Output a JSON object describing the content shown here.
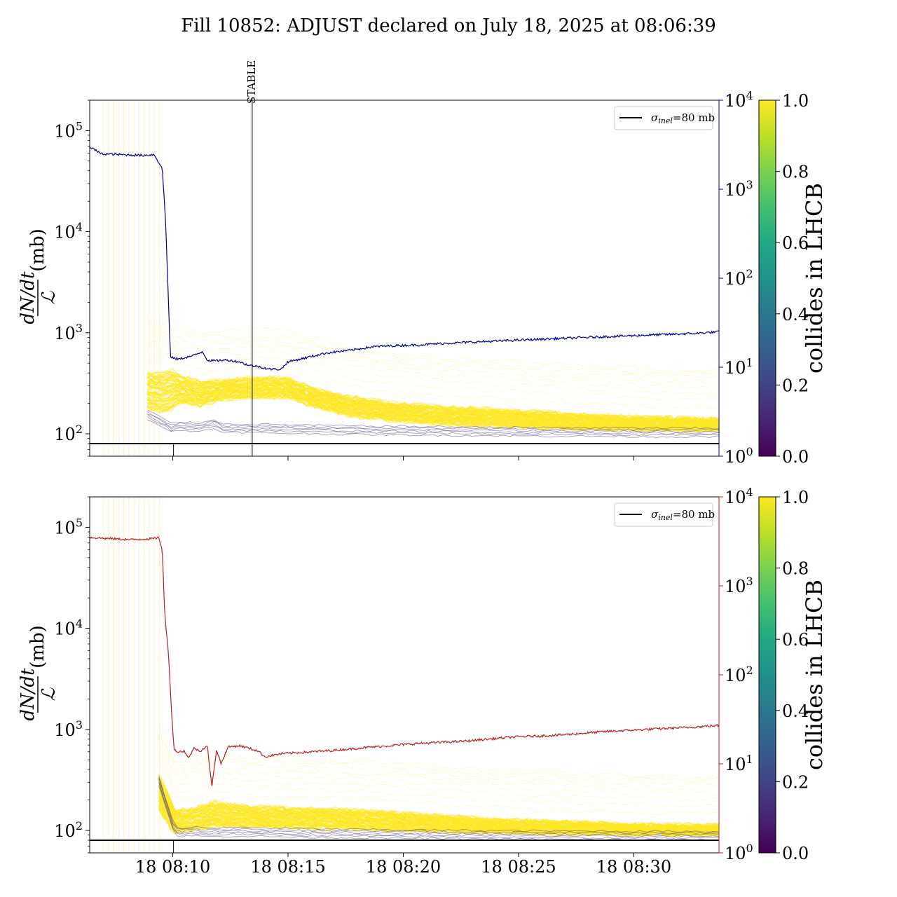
{
  "title": "Fill 10852: ADJUST declared on July 18, 2025 at 08:06:39",
  "colors": {
    "upper_line": "#00008b",
    "lower_line": "#b22222",
    "yellow": "#fde725",
    "purple": "#46327e"
  },
  "chart_data": [
    {
      "type": "line",
      "name": "upper_panel",
      "ylabel_frac_num": "dN/dt",
      "ylabel_frac_den": "ℒ",
      "ylabel_unit": "(mb)",
      "y_scale": "log",
      "ylim": [
        60,
        200000
      ],
      "y_ticks": [
        "10^2",
        "10^3",
        "10^4",
        "10^5"
      ],
      "x_ticks": [],
      "xlim_minutes_from_0810": [
        -3.3,
        24
      ],
      "right_axis": {
        "scale": "log",
        "ylim": [
          1,
          10000
        ],
        "ticks": [
          "10^0",
          "10^1",
          "10^2",
          "10^3",
          "10^4"
        ],
        "color": "#00008b"
      },
      "legend": [
        {
          "label_main": "σ",
          "label_sub": "inel",
          "label_rest": "=80 mb",
          "color": "#000000"
        }
      ],
      "legend_position": "upper-right",
      "hline": 80,
      "vline": {
        "label": "STABLE",
        "x": "18 08:14"
      },
      "right_series": {
        "x": [
          -3.3,
          -2.8,
          -2.0,
          -1.0,
          -0.5,
          -0.15,
          0.0,
          0.2,
          0.4,
          0.6,
          1.2,
          1.6,
          1.8,
          2.2,
          2.4,
          2.7,
          3.2,
          3.6,
          4.0,
          4.5,
          5.0,
          5.3,
          6.2,
          7.0,
          8.0,
          9.0,
          10.0,
          11.0,
          12.0,
          14.0,
          16.0,
          18.0,
          20.0,
          22.0,
          23.0,
          24.0
        ],
        "y": [
          3000,
          2500,
          2450,
          2400,
          2450,
          1700,
          400,
          13,
          12.5,
          12.4,
          13.5,
          15,
          12,
          11.8,
          12,
          12,
          11.5,
          10.5,
          10.2,
          9.5,
          9.5,
          11.5,
          13,
          14.5,
          15.5,
          17,
          17.5,
          17.8,
          18.5,
          19.5,
          20.5,
          21.5,
          22.5,
          23.5,
          24,
          25
        ]
      },
      "colorbar": {
        "label": "collides in LHCB",
        "ticks": [
          "0.0",
          "0.2",
          "0.4",
          "0.6",
          "0.8",
          "1.0"
        ],
        "colormap": "viridis"
      },
      "band_series_upper": {
        "x": [
          -0.8,
          0.0,
          0.2,
          0.6,
          1.5,
          2.5,
          4.0,
          5.3,
          6.2,
          8.0,
          10.0,
          12.0,
          14.0,
          16.0,
          18.0,
          20.0,
          24.0
        ],
        "y": [
          400,
          400,
          430,
          380,
          330,
          340,
          360,
          350,
          290,
          230,
          200,
          185,
          175,
          165,
          155,
          148,
          140
        ]
      },
      "band_series_lower": {
        "x": [
          -0.8,
          0.0,
          0.2,
          0.6,
          1.5,
          2.5,
          4.0,
          5.3,
          6.2,
          8.0,
          10.0,
          12.0,
          14.0,
          16.0,
          18.0,
          20.0,
          24.0
        ],
        "y": [
          180,
          160,
          170,
          200,
          190,
          220,
          230,
          230,
          190,
          150,
          135,
          125,
          120,
          115,
          112,
          110,
          108
        ]
      },
      "purple_series": {
        "x": [
          -0.8,
          0.0,
          0.2,
          0.6,
          1.5,
          2.2,
          2.4,
          3.0,
          5.0,
          8.0,
          12.0,
          16.0,
          20.0,
          24.0
        ],
        "y": [
          150,
          120,
          110,
          115,
          112,
          125,
          108,
          110,
          108,
          105,
          103,
          101,
          100,
          99
        ]
      }
    },
    {
      "type": "line",
      "name": "lower_panel",
      "ylabel_frac_num": "dN/dt",
      "ylabel_frac_den": "ℒ",
      "ylabel_unit": "(mb)",
      "y_scale": "log",
      "ylim": [
        60,
        200000
      ],
      "y_ticks": [
        "10^2",
        "10^3",
        "10^4",
        "10^5"
      ],
      "x_ticks": [
        "18 08:10",
        "18 08:15",
        "18 08:20",
        "18 08:25",
        "18 08:30"
      ],
      "x_tick_values": [
        0,
        5,
        10,
        15,
        20
      ],
      "xlim_minutes_from_0810": [
        -3.3,
        24
      ],
      "right_axis": {
        "scale": "log",
        "ylim": [
          1,
          10000
        ],
        "ticks": [
          "10^0",
          "10^1",
          "10^2",
          "10^3",
          "10^4"
        ],
        "color": "#b22222"
      },
      "legend": [
        {
          "label_main": "σ",
          "label_sub": "inel",
          "label_rest": "=80 mb",
          "color": "#000000"
        }
      ],
      "legend_position": "upper-right",
      "hline": 80,
      "right_series": {
        "x": [
          -3.3,
          -2.5,
          -1.5,
          -0.5,
          -0.3,
          -0.15,
          -0.05,
          0.1,
          0.25,
          0.35,
          0.5,
          0.8,
          1.0,
          1.2,
          1.5,
          1.8,
          2.0,
          2.2,
          2.4,
          2.7,
          3.2,
          3.6,
          4.0,
          4.3,
          5.0,
          7.0,
          9.0,
          11.0,
          13.0,
          15.0,
          17.0,
          19.0,
          21.0,
          23.0,
          24.0
        ],
        "y": [
          3500,
          3400,
          3300,
          3400,
          3500,
          2500,
          500,
          200,
          40,
          15,
          13.5,
          14,
          11.5,
          15,
          14,
          16,
          5.5,
          14.5,
          10,
          15.5,
          16,
          15,
          14,
          12,
          13,
          14,
          15.5,
          17,
          18,
          20,
          21,
          23,
          24.5,
          26,
          27
        ]
      },
      "colorbar": {
        "label": "collides in LHCB",
        "ticks": [
          "0.0",
          "0.2",
          "0.4",
          "0.6",
          "0.8",
          "1.0"
        ],
        "colormap": "viridis"
      },
      "band_series_upper": {
        "x": [
          -0.3,
          0.0,
          0.4,
          0.8,
          1.5,
          2.0,
          3.0,
          4.0,
          6.0,
          8.0,
          10.0,
          12.0,
          14.0,
          16.0,
          18.0,
          20.0,
          24.0
        ],
        "y": [
          350,
          260,
          160,
          160,
          170,
          190,
          180,
          170,
          165,
          160,
          150,
          140,
          130,
          125,
          120,
          115,
          112
        ]
      },
      "band_series_lower": {
        "x": [
          -0.3,
          0.0,
          0.4,
          0.8,
          1.5,
          2.0,
          3.0,
          4.0,
          6.0,
          8.0,
          10.0,
          12.0,
          14.0,
          16.0,
          18.0,
          20.0,
          24.0
        ],
        "y": [
          160,
          120,
          95,
          100,
          105,
          110,
          110,
          108,
          106,
          104,
          100,
          98,
          96,
          94,
          93,
          92,
          91
        ]
      },
      "purple_series": {
        "x": [
          -0.3,
          0.0,
          0.3,
          0.6,
          1.0,
          2.0,
          3.0,
          5.0,
          8.0,
          12.0,
          16.0,
          20.0,
          24.0
        ],
        "y": [
          300,
          180,
          110,
          90,
          95,
          92,
          94,
          92,
          90,
          88,
          87,
          86,
          86
        ]
      }
    }
  ]
}
